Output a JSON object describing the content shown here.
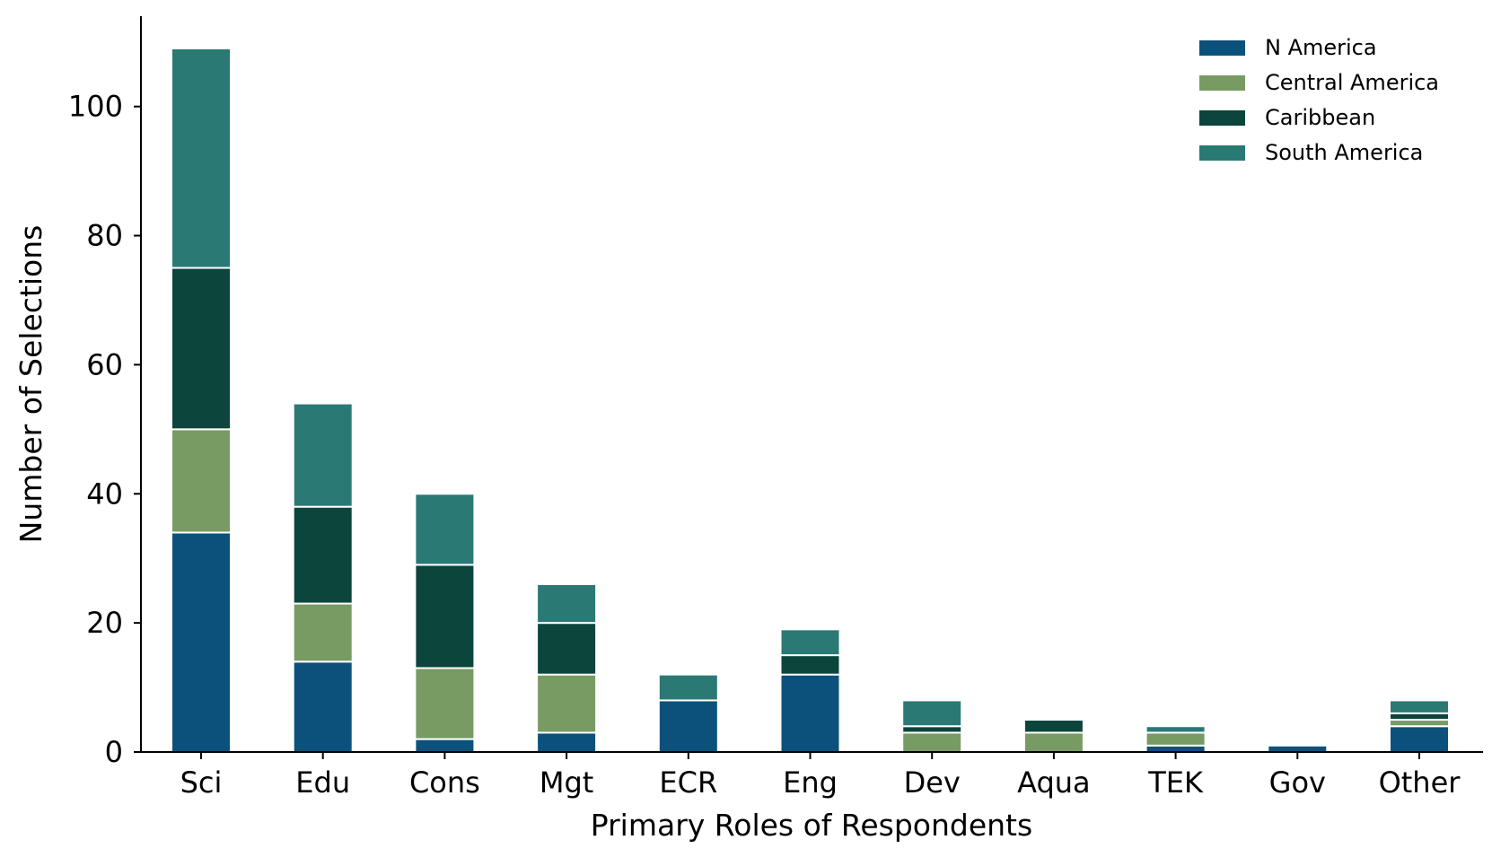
{
  "chart_data": {
    "type": "bar",
    "stacked": true,
    "categories": [
      "Sci",
      "Edu",
      "Cons",
      "Mgt",
      "ECR",
      "Eng",
      "Dev",
      "Aqua",
      "TEK",
      "Gov",
      "Other"
    ],
    "series": [
      {
        "name": "N America",
        "color": "#0b517b",
        "values": [
          34,
          14,
          2,
          3,
          8,
          12,
          0,
          0,
          1,
          1,
          4
        ]
      },
      {
        "name": "Central America",
        "color": "#789b63",
        "values": [
          16,
          9,
          11,
          9,
          0,
          0,
          3,
          3,
          2,
          0,
          1
        ]
      },
      {
        "name": "Caribbean",
        "color": "#0b453c",
        "values": [
          25,
          15,
          16,
          8,
          0,
          3,
          1,
          2,
          0,
          0,
          1
        ]
      },
      {
        "name": "South America",
        "color": "#2a7975",
        "values": [
          34,
          16,
          11,
          6,
          4,
          4,
          4,
          0,
          1,
          0,
          2
        ]
      }
    ],
    "xlabel": "Primary Roles of Respondents",
    "ylabel": "Number of Selections",
    "ylim": [
      0,
      114
    ],
    "yticks": [
      0,
      20,
      40,
      60,
      80,
      100
    ],
    "grid": false,
    "legend_position": "top-right"
  }
}
